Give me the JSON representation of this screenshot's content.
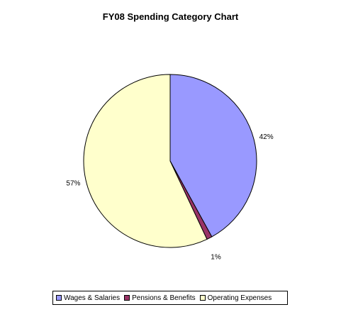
{
  "chart_data": {
    "type": "pie",
    "title": "FY08 Spending Category Chart",
    "categories": [
      "Wages & Salaries",
      "Pensions & Benefits",
      "Operating Expenses"
    ],
    "values": [
      42,
      1,
      57
    ],
    "labels": [
      "42%",
      "1%",
      "57%"
    ],
    "colors": [
      "#9999FF",
      "#993366",
      "#FFFFCC"
    ],
    "legend_position": "bottom",
    "start": "12 o'clock, clockwise"
  }
}
